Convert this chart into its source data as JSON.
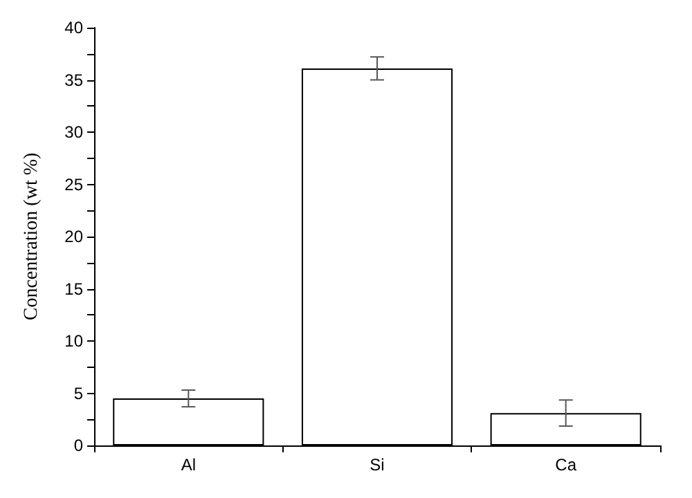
{
  "chart_data": {
    "type": "bar",
    "ylabel": "Concentration (wt %)",
    "categories": [
      "Al",
      "Si",
      "Ca"
    ],
    "values": [
      4.5,
      36.1,
      3.1
    ],
    "errors": [
      0.8,
      1.1,
      1.25
    ],
    "color": "#ffffff",
    "ylim": [
      0,
      40
    ],
    "yticks": [
      0,
      {
        "value": 2.5,
        "label": null
      },
      5,
      {
        "value": 7.5,
        "label": null
      },
      10,
      {
        "value": 12.5,
        "label": null
      },
      15,
      {
        "value": 17.5,
        "label": null
      },
      20,
      {
        "value": 22.5,
        "label": null
      },
      25,
      {
        "value": 27.5,
        "label": null
      },
      30,
      {
        "value": 32.5,
        "label": null
      },
      35,
      {
        "value": 37.5,
        "label": null
      },
      40
    ],
    "grid": false
  }
}
